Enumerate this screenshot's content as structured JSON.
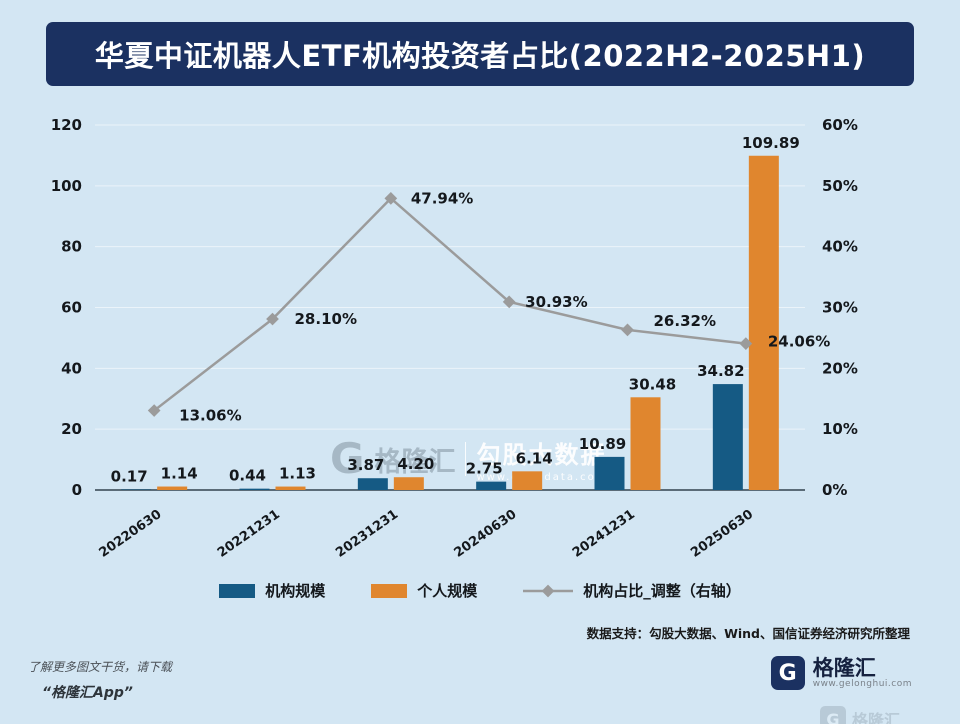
{
  "title": "华夏中证机器人ETF机构投资者占比(2022H2-2025H1)",
  "chart_data": {
    "type": "bar",
    "subtype": "grouped-bars-with-line-overlay",
    "categories": [
      "20220630",
      "20221231",
      "20231231",
      "20240630",
      "20241231",
      "20250630"
    ],
    "series": [
      {
        "name": "机构规模",
        "type": "bar",
        "axis": "left",
        "color": "#155a84",
        "values": [
          0.17,
          0.44,
          3.87,
          2.75,
          10.89,
          34.82
        ]
      },
      {
        "name": "个人规模",
        "type": "bar",
        "axis": "left",
        "color": "#e0862e",
        "values": [
          1.14,
          1.13,
          4.2,
          6.14,
          30.48,
          109.89
        ]
      },
      {
        "name": "机构占比_调整（右轴）",
        "type": "line",
        "axis": "right",
        "color": "#9b9b9b",
        "values": [
          13.06,
          28.1,
          47.94,
          30.93,
          26.32,
          24.06
        ]
      }
    ],
    "left_axis": {
      "min": 0,
      "max": 120,
      "ticks": [
        0,
        20,
        40,
        60,
        80,
        100,
        120
      ]
    },
    "right_axis": {
      "min": 0,
      "max": 60,
      "ticks": [
        "0%",
        "10%",
        "20%",
        "30%",
        "40%",
        "50%",
        "60%"
      ]
    },
    "legend_position": "bottom",
    "grid": true
  },
  "watermark": {
    "logo_letter": "G",
    "brand": "格隆汇",
    "tagline": "勾股大数据",
    "url": "www.gogudata.com"
  },
  "footer": {
    "data_support": "数据支持：勾股大数据、Wind、国信证券经济研究所整理",
    "promo_line1": "了解更多图文干货，请下载",
    "promo_line2": "“格隆汇App”",
    "logo_letter": "G",
    "brand": "格隆汇",
    "brand_url": "www.gelonghui.com"
  },
  "colors": {
    "background": "#d3e6f3",
    "title_bar": "#1b3161",
    "bar_institutional": "#155a84",
    "bar_individual": "#e0862e",
    "line": "#9b9b9b"
  }
}
